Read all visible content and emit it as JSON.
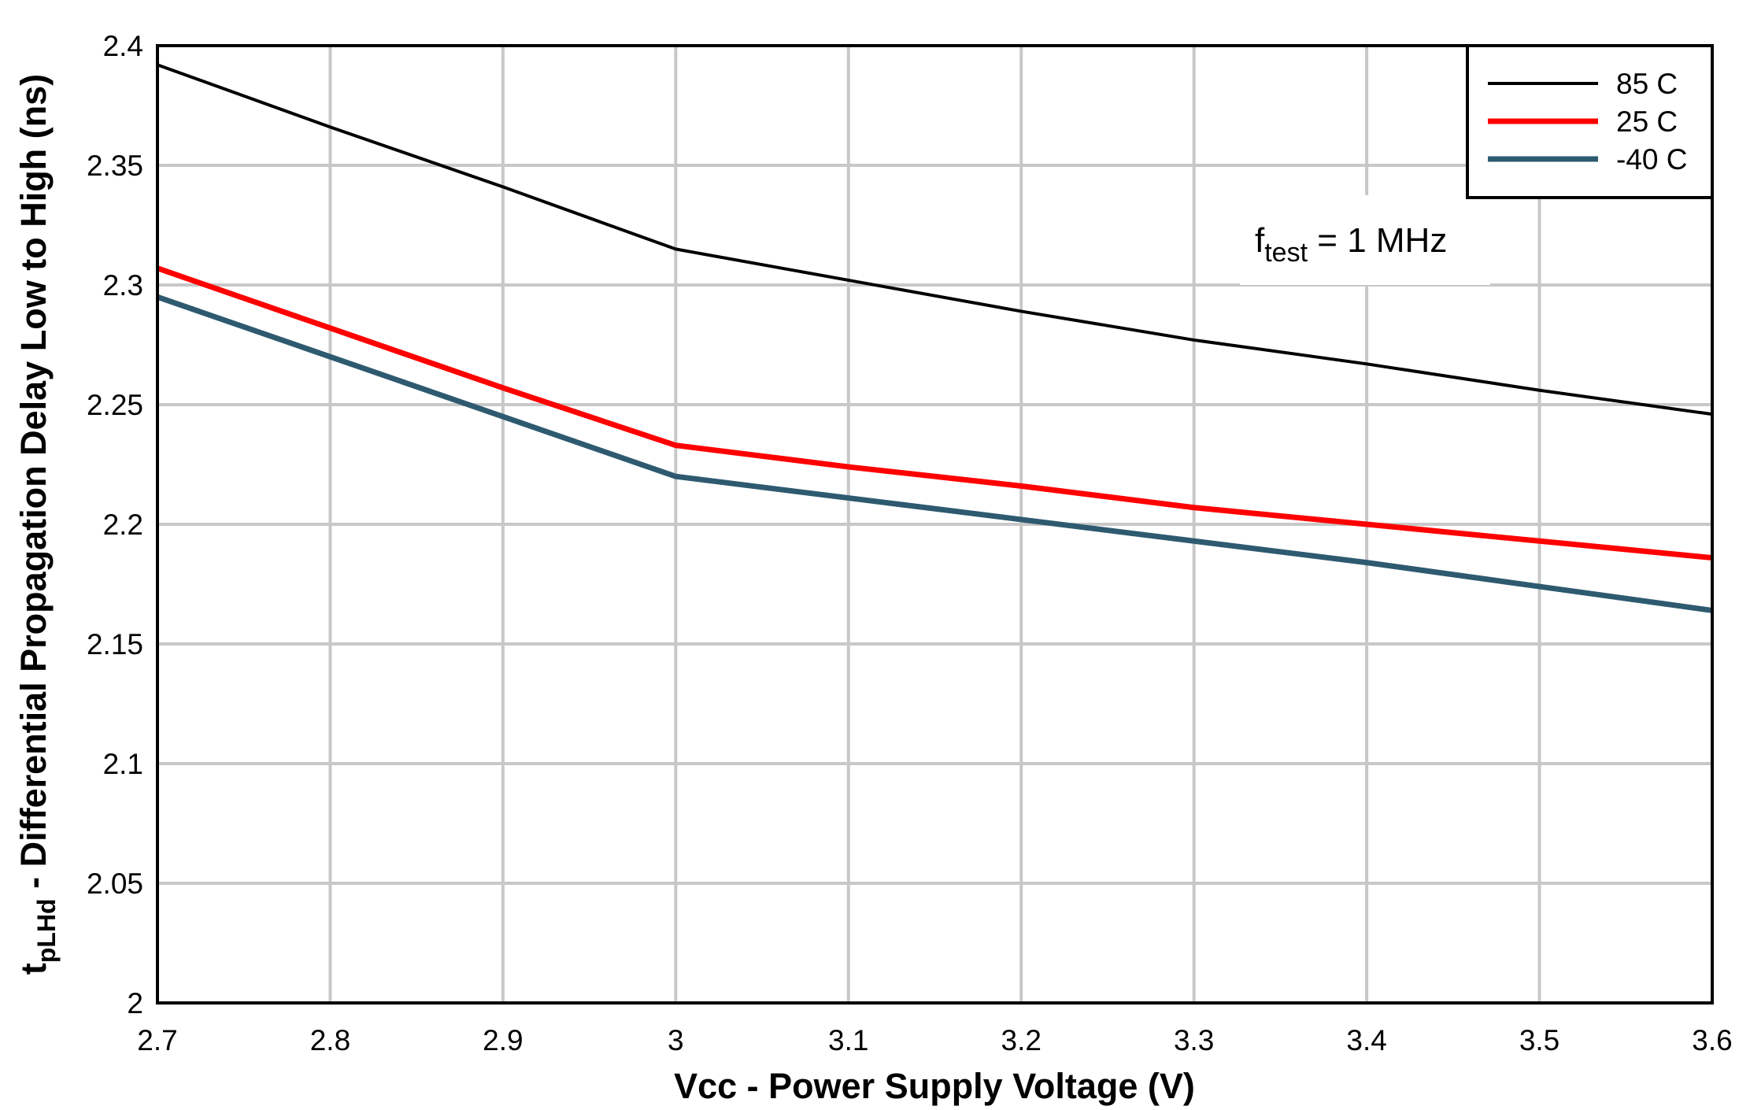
{
  "chart_data": {
    "type": "line",
    "xlabel": "Vcc - Power Supply Voltage  (V)",
    "ylabel_main": "t",
    "ylabel_sub": "pLHd",
    "ylabel_rest": " - Differential Propagation Delay Low to High (ns)",
    "xlim": [
      2.7,
      3.6
    ],
    "ylim": [
      2.0,
      2.4
    ],
    "xticks": [
      "2.7",
      "2.8",
      "2.9",
      "3",
      "3.1",
      "3.2",
      "3.3",
      "3.4",
      "3.5",
      "3.6"
    ],
    "yticks": [
      "2",
      "2.05",
      "2.1",
      "2.15",
      "2.2",
      "2.25",
      "2.3",
      "2.35",
      "2.4"
    ],
    "grid": true,
    "legend_position": "top-right",
    "annotation": {
      "main": "f",
      "sub": "test",
      "rest": " = 1 MHz"
    },
    "x": [
      2.7,
      2.8,
      2.9,
      3.0,
      3.1,
      3.2,
      3.3,
      3.4,
      3.5,
      3.6
    ],
    "series": [
      {
        "name": "85 C",
        "color": "#000000",
        "values": [
          2.392,
          2.366,
          2.341,
          2.315,
          2.302,
          2.289,
          2.277,
          2.267,
          2.256,
          2.246
        ]
      },
      {
        "name": "25 C",
        "color": "#ff0000",
        "values": [
          2.307,
          2.282,
          2.257,
          2.233,
          2.224,
          2.216,
          2.207,
          2.2,
          2.193,
          2.186
        ]
      },
      {
        "name": "-40 C",
        "color": "#2e5a70",
        "values": [
          2.295,
          2.27,
          2.245,
          2.22,
          2.211,
          2.202,
          2.193,
          2.184,
          2.174,
          2.164
        ]
      }
    ]
  }
}
